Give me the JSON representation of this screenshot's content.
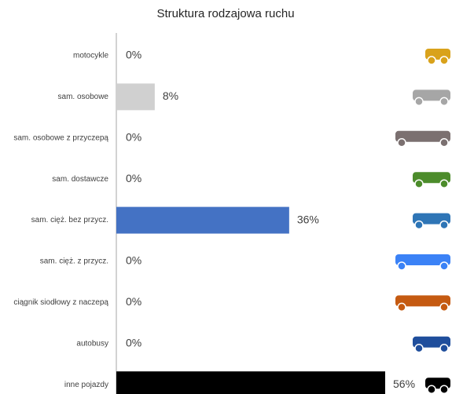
{
  "chart_data": {
    "type": "bar",
    "orientation": "horizontal",
    "title": "Struktura rodzajowa ruchu",
    "categories": [
      "motocykle",
      "sam. osobowe",
      "sam. osobowe z przyczepą",
      "sam. dostawcze",
      "sam. cięż. bez przycz.",
      "sam. cięż. z przycz.",
      "ciągnik siodłowy z naczepą",
      "autobusy",
      "inne pojazdy"
    ],
    "values": [
      0,
      8,
      0,
      0,
      36,
      0,
      0,
      0,
      56
    ],
    "value_labels": [
      "0%",
      "8%",
      "0%",
      "0%",
      "36%",
      "0%",
      "0%",
      "0%",
      "56%"
    ],
    "colors": [
      "#d9a21b",
      "#d0d0d0",
      "#7b7070",
      "#4c8c2b",
      "#4472c4",
      "#3b7ddd",
      "#c55a11",
      "#1f4e9c",
      "#000000"
    ]
  }
}
